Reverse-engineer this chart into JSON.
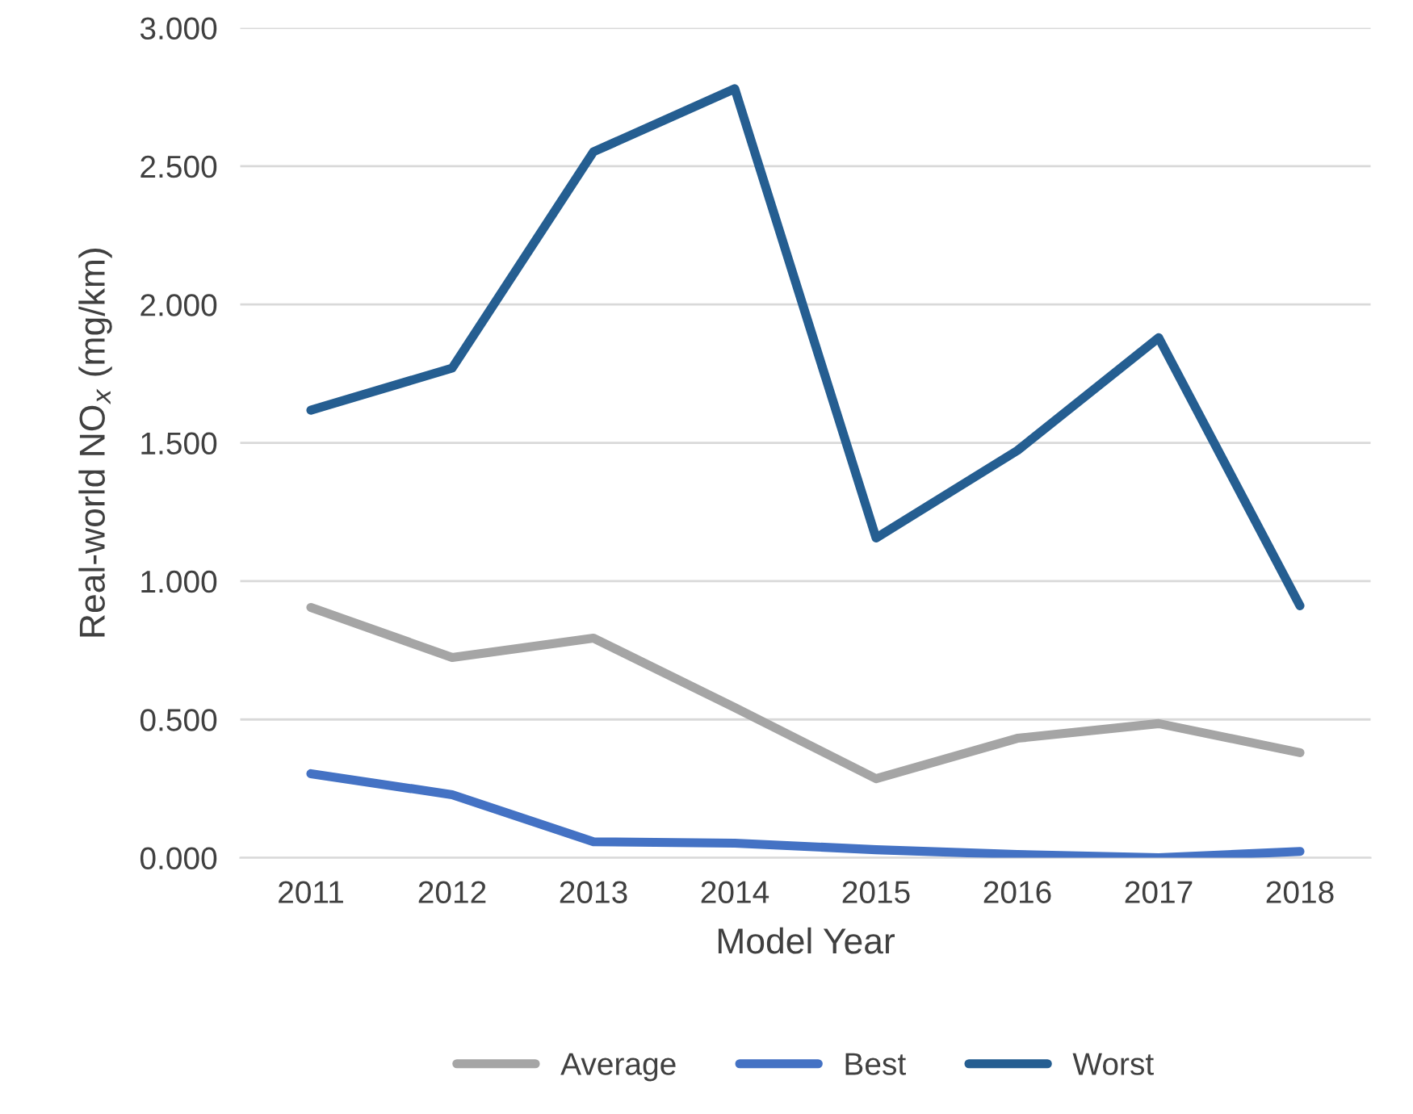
{
  "chart_data": {
    "type": "line",
    "xlabel": "Model Year",
    "ylabel": "Real-world NO$_{x}$ (mg/km)",
    "categories": [
      "2011",
      "2012",
      "2013",
      "2014",
      "2015",
      "2016",
      "2017",
      "2018"
    ],
    "series": [
      {
        "name": "Average",
        "color": "#a5a5a5",
        "values": [
          0.905,
          0.724,
          0.794,
          0.543,
          0.286,
          0.432,
          0.485,
          0.38
        ]
      },
      {
        "name": "Best",
        "color": "#4472c4",
        "values": [
          0.304,
          0.228,
          0.058,
          0.053,
          0.029,
          0.012,
          0.0,
          0.023
        ]
      },
      {
        "name": "Worst",
        "color": "#255e91",
        "values": [
          1.618,
          1.77,
          2.552,
          2.78,
          1.156,
          1.472,
          1.88,
          0.911
        ]
      }
    ],
    "ylim": [
      0,
      3
    ],
    "yticks": [
      {
        "value": 0,
        "label": "0.000"
      },
      {
        "value": 0.5,
        "label": "0.500"
      },
      {
        "value": 1,
        "label": "1.000"
      },
      {
        "value": 1.5,
        "label": "1.500"
      },
      {
        "value": 2,
        "label": "2.000"
      },
      {
        "value": 2.5,
        "label": "2.500"
      },
      {
        "value": 3,
        "label": "3.000"
      }
    ],
    "grid": "y",
    "legend": "bottom",
    "marker": "none",
    "line_style": "solid"
  }
}
